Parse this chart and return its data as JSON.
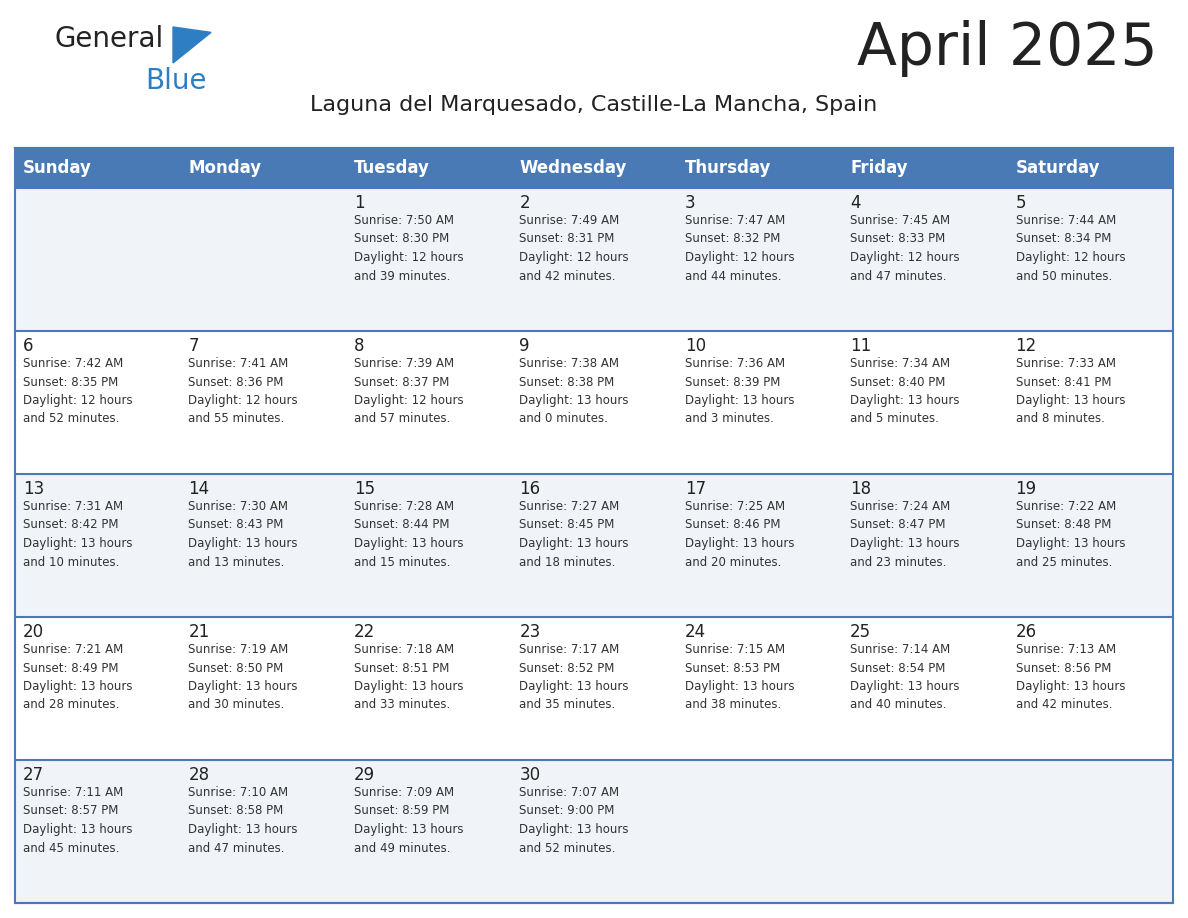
{
  "title": "April 2025",
  "subtitle": "Laguna del Marquesado, Castille-La Mancha, Spain",
  "days_of_week": [
    "Sunday",
    "Monday",
    "Tuesday",
    "Wednesday",
    "Thursday",
    "Friday",
    "Saturday"
  ],
  "header_bg": "#4a7ab5",
  "header_text": "#ffffff",
  "row_bg_even": "#f0f4f8",
  "row_bg_odd": "#ffffff",
  "cell_text_color": "#333333",
  "day_num_color": "#222222",
  "border_color": "#4a7ab5",
  "line_color": "#4a7ab5",
  "title_color": "#222222",
  "subtitle_color": "#222222",
  "logo_general_color": "#222222",
  "logo_blue_color": "#2e7ec4",
  "weeks": [
    [
      {
        "day": null,
        "text": ""
      },
      {
        "day": null,
        "text": ""
      },
      {
        "day": 1,
        "text": "Sunrise: 7:50 AM\nSunset: 8:30 PM\nDaylight: 12 hours\nand 39 minutes."
      },
      {
        "day": 2,
        "text": "Sunrise: 7:49 AM\nSunset: 8:31 PM\nDaylight: 12 hours\nand 42 minutes."
      },
      {
        "day": 3,
        "text": "Sunrise: 7:47 AM\nSunset: 8:32 PM\nDaylight: 12 hours\nand 44 minutes."
      },
      {
        "day": 4,
        "text": "Sunrise: 7:45 AM\nSunset: 8:33 PM\nDaylight: 12 hours\nand 47 minutes."
      },
      {
        "day": 5,
        "text": "Sunrise: 7:44 AM\nSunset: 8:34 PM\nDaylight: 12 hours\nand 50 minutes."
      }
    ],
    [
      {
        "day": 6,
        "text": "Sunrise: 7:42 AM\nSunset: 8:35 PM\nDaylight: 12 hours\nand 52 minutes."
      },
      {
        "day": 7,
        "text": "Sunrise: 7:41 AM\nSunset: 8:36 PM\nDaylight: 12 hours\nand 55 minutes."
      },
      {
        "day": 8,
        "text": "Sunrise: 7:39 AM\nSunset: 8:37 PM\nDaylight: 12 hours\nand 57 minutes."
      },
      {
        "day": 9,
        "text": "Sunrise: 7:38 AM\nSunset: 8:38 PM\nDaylight: 13 hours\nand 0 minutes."
      },
      {
        "day": 10,
        "text": "Sunrise: 7:36 AM\nSunset: 8:39 PM\nDaylight: 13 hours\nand 3 minutes."
      },
      {
        "day": 11,
        "text": "Sunrise: 7:34 AM\nSunset: 8:40 PM\nDaylight: 13 hours\nand 5 minutes."
      },
      {
        "day": 12,
        "text": "Sunrise: 7:33 AM\nSunset: 8:41 PM\nDaylight: 13 hours\nand 8 minutes."
      }
    ],
    [
      {
        "day": 13,
        "text": "Sunrise: 7:31 AM\nSunset: 8:42 PM\nDaylight: 13 hours\nand 10 minutes."
      },
      {
        "day": 14,
        "text": "Sunrise: 7:30 AM\nSunset: 8:43 PM\nDaylight: 13 hours\nand 13 minutes."
      },
      {
        "day": 15,
        "text": "Sunrise: 7:28 AM\nSunset: 8:44 PM\nDaylight: 13 hours\nand 15 minutes."
      },
      {
        "day": 16,
        "text": "Sunrise: 7:27 AM\nSunset: 8:45 PM\nDaylight: 13 hours\nand 18 minutes."
      },
      {
        "day": 17,
        "text": "Sunrise: 7:25 AM\nSunset: 8:46 PM\nDaylight: 13 hours\nand 20 minutes."
      },
      {
        "day": 18,
        "text": "Sunrise: 7:24 AM\nSunset: 8:47 PM\nDaylight: 13 hours\nand 23 minutes."
      },
      {
        "day": 19,
        "text": "Sunrise: 7:22 AM\nSunset: 8:48 PM\nDaylight: 13 hours\nand 25 minutes."
      }
    ],
    [
      {
        "day": 20,
        "text": "Sunrise: 7:21 AM\nSunset: 8:49 PM\nDaylight: 13 hours\nand 28 minutes."
      },
      {
        "day": 21,
        "text": "Sunrise: 7:19 AM\nSunset: 8:50 PM\nDaylight: 13 hours\nand 30 minutes."
      },
      {
        "day": 22,
        "text": "Sunrise: 7:18 AM\nSunset: 8:51 PM\nDaylight: 13 hours\nand 33 minutes."
      },
      {
        "day": 23,
        "text": "Sunrise: 7:17 AM\nSunset: 8:52 PM\nDaylight: 13 hours\nand 35 minutes."
      },
      {
        "day": 24,
        "text": "Sunrise: 7:15 AM\nSunset: 8:53 PM\nDaylight: 13 hours\nand 38 minutes."
      },
      {
        "day": 25,
        "text": "Sunrise: 7:14 AM\nSunset: 8:54 PM\nDaylight: 13 hours\nand 40 minutes."
      },
      {
        "day": 26,
        "text": "Sunrise: 7:13 AM\nSunset: 8:56 PM\nDaylight: 13 hours\nand 42 minutes."
      }
    ],
    [
      {
        "day": 27,
        "text": "Sunrise: 7:11 AM\nSunset: 8:57 PM\nDaylight: 13 hours\nand 45 minutes."
      },
      {
        "day": 28,
        "text": "Sunrise: 7:10 AM\nSunset: 8:58 PM\nDaylight: 13 hours\nand 47 minutes."
      },
      {
        "day": 29,
        "text": "Sunrise: 7:09 AM\nSunset: 8:59 PM\nDaylight: 13 hours\nand 49 minutes."
      },
      {
        "day": 30,
        "text": "Sunrise: 7:07 AM\nSunset: 9:00 PM\nDaylight: 13 hours\nand 52 minutes."
      },
      {
        "day": null,
        "text": ""
      },
      {
        "day": null,
        "text": ""
      },
      {
        "day": null,
        "text": ""
      }
    ]
  ]
}
